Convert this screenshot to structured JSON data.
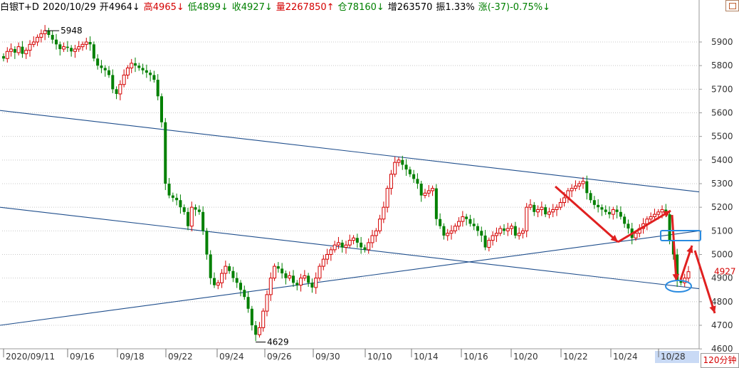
{
  "header": {
    "symbol": "白银T+D",
    "date": "2020/10/29",
    "open": "开4964↓",
    "high": "高4965↓",
    "low": "低4899↓",
    "close": "收4927↓",
    "volume": "量2267850↑",
    "position": "仓78160↓",
    "increase": "增263570",
    "amplitude": "振1.33%",
    "change": "涨(-37)-0.75%↓"
  },
  "period_label": "120分钟",
  "colors": {
    "up": "#d40000",
    "down": "#008000",
    "trendline": "#1f4e8c",
    "arrow": "#e02020",
    "highlight": "#2a8be0"
  },
  "chart_data": {
    "type": "candlestick",
    "title": "",
    "ylim": [
      4600,
      6000
    ],
    "y_ticks": [
      4600,
      4700,
      4800,
      4900,
      5000,
      5100,
      5200,
      5300,
      5400,
      5500,
      5600,
      5700,
      5800,
      5900
    ],
    "x_tick_labels": [
      "2020/09/11",
      "09/16",
      "09/18",
      "09/22",
      "09/24",
      "09/26",
      "09/30",
      "10/10",
      "10/14",
      "10/16",
      "10/20",
      "10/22",
      "10/24",
      "10/28"
    ],
    "highlighted_x_label": "10/28",
    "peak_label": "5948",
    "trough_label": "4629",
    "last_price_label": "4927",
    "last_price": 4927,
    "closes": [
      5830,
      5860,
      5870,
      5855,
      5880,
      5850,
      5865,
      5890,
      5900,
      5920,
      5935,
      5948,
      5930,
      5910,
      5890,
      5870,
      5880,
      5875,
      5860,
      5870,
      5880,
      5890,
      5900,
      5890,
      5830,
      5800,
      5790,
      5780,
      5760,
      5700,
      5680,
      5720,
      5760,
      5790,
      5810,
      5800,
      5790,
      5780,
      5770,
      5760,
      5740,
      5670,
      5560,
      5300,
      5250,
      5240,
      5230,
      5200,
      5180,
      5120,
      5200,
      5190,
      5180,
      5100,
      5000,
      4900,
      4870,
      4880,
      4920,
      4950,
      4930,
      4900,
      4880,
      4850,
      4820,
      4770,
      4700,
      4660,
      4690,
      4760,
      4830,
      4900,
      4950,
      4940,
      4920,
      4900,
      4910,
      4880,
      4870,
      4900,
      4910,
      4880,
      4860,
      4900,
      4950,
      4980,
      5000,
      5020,
      5040,
      5050,
      5030,
      5040,
      5060,
      5070,
      5050,
      5030,
      5020,
      5050,
      5080,
      5100,
      5150,
      5200,
      5280,
      5340,
      5390,
      5400,
      5380,
      5360,
      5340,
      5320,
      5300,
      5250,
      5260,
      5270,
      5280,
      5150,
      5120,
      5080,
      5090,
      5100,
      5120,
      5140,
      5160,
      5150,
      5130,
      5120,
      5100,
      5080,
      5030,
      5060,
      5080,
      5090,
      5110,
      5100,
      5110,
      5120,
      5080,
      5090,
      5100,
      5200,
      5210,
      5180,
      5190,
      5200,
      5170,
      5180,
      5190,
      5200,
      5220,
      5240,
      5270,
      5280,
      5290,
      5300,
      5310,
      5260,
      5230,
      5210,
      5200,
      5190,
      5180,
      5170,
      5190,
      5180,
      5160,
      5130,
      5110,
      5070,
      5090,
      5110,
      5130,
      5150,
      5160,
      5170,
      5180,
      5190,
      5170,
      5060,
      5000,
      4890,
      4880,
      4900,
      4927
    ]
  },
  "annotations": {
    "trendlines": [
      {
        "from": [
          "2020/09/11",
          5610
        ],
        "to": [
          "10/28",
          5265
        ]
      },
      {
        "from": [
          "2020/09/11",
          5200
        ],
        "to": [
          "10/28",
          4855
        ]
      },
      {
        "from": [
          "2020/09/11",
          4700
        ],
        "to": [
          "10/28",
          5100
        ]
      }
    ]
  }
}
